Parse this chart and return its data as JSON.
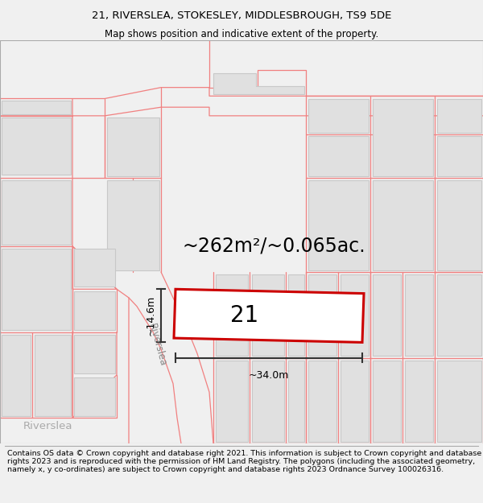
{
  "title_line1": "21, RIVERSLEA, STOKESLEY, MIDDLESBROUGH, TS9 5DE",
  "title_line2": "Map shows position and indicative extent of the property.",
  "footer_text": "Contains OS data © Crown copyright and database right 2021. This information is subject to Crown copyright and database rights 2023 and is reproduced with the permission of HM Land Registry. The polygons (including the associated geometry, namely x, y co-ordinates) are subject to Crown copyright and database rights 2023 Ordnance Survey 100026316.",
  "area_label": "~262m²/~0.065ac.",
  "width_label": "~34.0m",
  "height_label": "~14.6m",
  "property_number": "21",
  "road_label_diagonal": "Riverslea",
  "road_label_bottom": "Riverslea",
  "bg_color": "#f0f0f0",
  "map_bg": "#ffffff",
  "building_fill": "#e0e0e0",
  "building_edge": "#c8c8c8",
  "road_line_color": "#f08080",
  "property_edge": "#cc0000",
  "property_fill": "#ffffff",
  "dim_line_color": "#333333",
  "title_fontsize": 9.5,
  "footer_fontsize": 6.8
}
